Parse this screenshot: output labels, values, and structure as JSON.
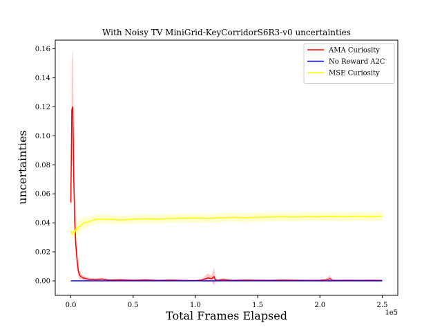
{
  "chart_data": {
    "type": "line",
    "title": "With Noisy TV MiniGrid-KeyCorridorS6R3-v0 uncertainties",
    "xlabel": "Total Frames Elapsed",
    "ylabel": "uncertainties",
    "x_offset_label": "1e5",
    "xlim": [
      -12500,
      262500
    ],
    "ylim": [
      -0.01,
      0.166
    ],
    "x_ticks": [
      0,
      50000,
      100000,
      150000,
      200000,
      250000
    ],
    "x_tick_labels": [
      "0.0",
      "0.5",
      "1.0",
      "1.5",
      "2.0",
      "2.5"
    ],
    "y_ticks": [
      0.0,
      0.02,
      0.04,
      0.06,
      0.08,
      0.1,
      0.12,
      0.14,
      0.16
    ],
    "y_tick_labels": [
      "0.00",
      "0.02",
      "0.04",
      "0.06",
      "0.08",
      "0.10",
      "0.12",
      "0.14",
      "0.16"
    ],
    "grid": false,
    "legend_position": "top-right",
    "series": [
      {
        "name": "AMA Curiosity",
        "color": "#ff0000",
        "band_color": "#ff9a9a",
        "x": [
          0,
          800,
          1600,
          2400,
          3200,
          4000,
          5000,
          6000,
          7000,
          8000,
          10000,
          12000,
          15000,
          20000,
          25000,
          30000,
          40000,
          50000,
          60000,
          70000,
          80000,
          90000,
          100000,
          105000,
          110000,
          113000,
          115000,
          116000,
          118000,
          122000,
          130000,
          140000,
          150000,
          160000,
          170000,
          180000,
          190000,
          200000,
          205000,
          208000,
          210000,
          215000,
          220000,
          230000,
          240000,
          250000
        ],
        "values": [
          0.054,
          0.118,
          0.12,
          0.07,
          0.04,
          0.025,
          0.015,
          0.007,
          0.004,
          0.003,
          0.002,
          0.0015,
          0.001,
          0.0008,
          0.0012,
          0.0005,
          0.0007,
          0.0004,
          0.0006,
          0.0003,
          0.0005,
          0.0003,
          0.0002,
          0.0005,
          0.002,
          0.0015,
          0.003,
          0.0006,
          0.0004,
          0.0008,
          0.0003,
          0.0005,
          0.0004,
          0.0003,
          0.0005,
          0.0004,
          0.0003,
          0.0004,
          0.0006,
          0.0015,
          0.0004,
          0.0003,
          0.0004,
          0.0003,
          0.0004,
          0.0003
        ],
        "band": [
          0.012,
          0.035,
          0.04,
          0.025,
          0.012,
          0.01,
          0.007,
          0.004,
          0.003,
          0.002,
          0.0015,
          0.0012,
          0.001,
          0.0008,
          0.001,
          0.0006,
          0.0006,
          0.0005,
          0.0006,
          0.0004,
          0.0005,
          0.0004,
          0.0004,
          0.0008,
          0.003,
          0.002,
          0.006,
          0.001,
          0.0006,
          0.001,
          0.0005,
          0.0006,
          0.0005,
          0.0005,
          0.0006,
          0.0005,
          0.0005,
          0.0005,
          0.0008,
          0.0025,
          0.0006,
          0.0005,
          0.0005,
          0.0005,
          0.0005,
          0.0005
        ]
      },
      {
        "name": "No Reward A2C",
        "color": "#0000ff",
        "band_color": "#9a9aff",
        "x": [
          0,
          250000
        ],
        "values": [
          0.0,
          0.0
        ],
        "band": [
          0.0,
          0.0
        ]
      },
      {
        "name": "MSE Curiosity",
        "color": "#ffff00",
        "band_color": "#ffffa8",
        "x": [
          0,
          1000,
          2000,
          3000,
          4000,
          5000,
          6000,
          8000,
          10000,
          12000,
          15000,
          20000,
          30000,
          40000,
          50000,
          60000,
          70000,
          80000,
          90000,
          100000,
          110000,
          120000,
          130000,
          140000,
          150000,
          160000,
          170000,
          180000,
          190000,
          200000,
          210000,
          220000,
          230000,
          240000,
          250000
        ],
        "values": [
          0.034,
          0.032,
          0.034,
          0.033,
          0.036,
          0.035,
          0.037,
          0.038,
          0.04,
          0.04,
          0.041,
          0.0425,
          0.0425,
          0.042,
          0.0425,
          0.0428,
          0.0425,
          0.043,
          0.0432,
          0.0433,
          0.043,
          0.0435,
          0.0438,
          0.0435,
          0.0438,
          0.044,
          0.0442,
          0.044,
          0.0443,
          0.0442,
          0.0445,
          0.0442,
          0.0446,
          0.0443,
          0.0446
        ],
        "band": [
          0.004,
          0.004,
          0.004,
          0.005,
          0.006,
          0.005,
          0.005,
          0.004,
          0.004,
          0.004,
          0.003,
          0.003,
          0.003,
          0.003,
          0.003,
          0.003,
          0.003,
          0.003,
          0.003,
          0.003,
          0.003,
          0.003,
          0.003,
          0.003,
          0.003,
          0.003,
          0.003,
          0.003,
          0.003,
          0.003,
          0.003,
          0.003,
          0.003,
          0.003,
          0.003
        ]
      }
    ]
  }
}
